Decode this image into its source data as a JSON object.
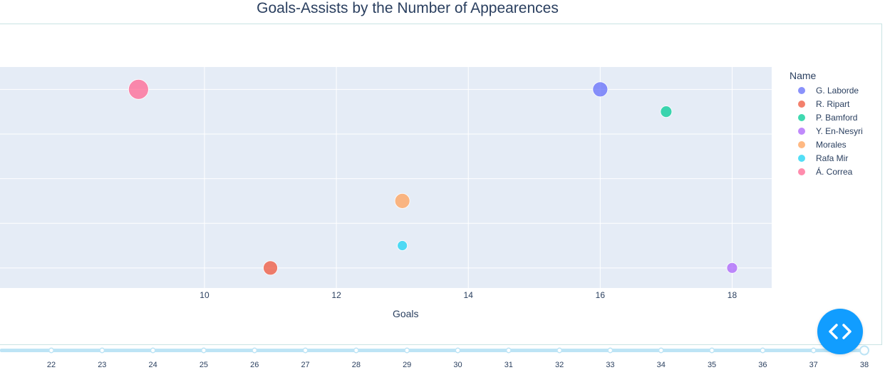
{
  "chart_data": {
    "type": "scatter",
    "title": "Goals-Assists by the Number of Appearences",
    "xlabel": "Goals",
    "ylabel": "",
    "xlim": [
      6.9,
      18.6
    ],
    "ylim": [
      0.55,
      5.5
    ],
    "x_ticks": [
      10,
      12,
      14,
      16,
      18
    ],
    "legend_title": "Name",
    "legend_position": "right",
    "grid": true,
    "series": [
      {
        "name": "G. Laborde",
        "color": "#636efa",
        "x": 16,
        "y": 5,
        "size": 21
      },
      {
        "name": "R. Ripart",
        "color": "#ef553b",
        "x": 11,
        "y": 1,
        "size": 20
      },
      {
        "name": "P. Bamford",
        "color": "#00cc96",
        "x": 17,
        "y": 4.5,
        "size": 16
      },
      {
        "name": "Y. En-Nesyri",
        "color": "#ab63fa",
        "x": 18,
        "y": 1,
        "size": 15
      },
      {
        "name": "Morales",
        "color": "#ffa15a",
        "x": 13,
        "y": 2.5,
        "size": 21
      },
      {
        "name": "Rafa Mir",
        "color": "#19d3f3",
        "x": 13,
        "y": 1.5,
        "size": 14
      },
      {
        "name": "Á. Correa",
        "color": "#ff6692",
        "x": 9,
        "y": 5,
        "size": 28
      }
    ]
  },
  "slider": {
    "labels": [
      "22",
      "23",
      "24",
      "25",
      "26",
      "27",
      "28",
      "29",
      "30",
      "31",
      "32",
      "33",
      "34",
      "35",
      "36",
      "37",
      "38"
    ],
    "active": "38"
  },
  "icons": {
    "code_button": "code-brackets-icon"
  },
  "colors": {
    "plot_bg": "#e5ecf6",
    "slider": "#bde4f5",
    "button": "#119dff"
  }
}
